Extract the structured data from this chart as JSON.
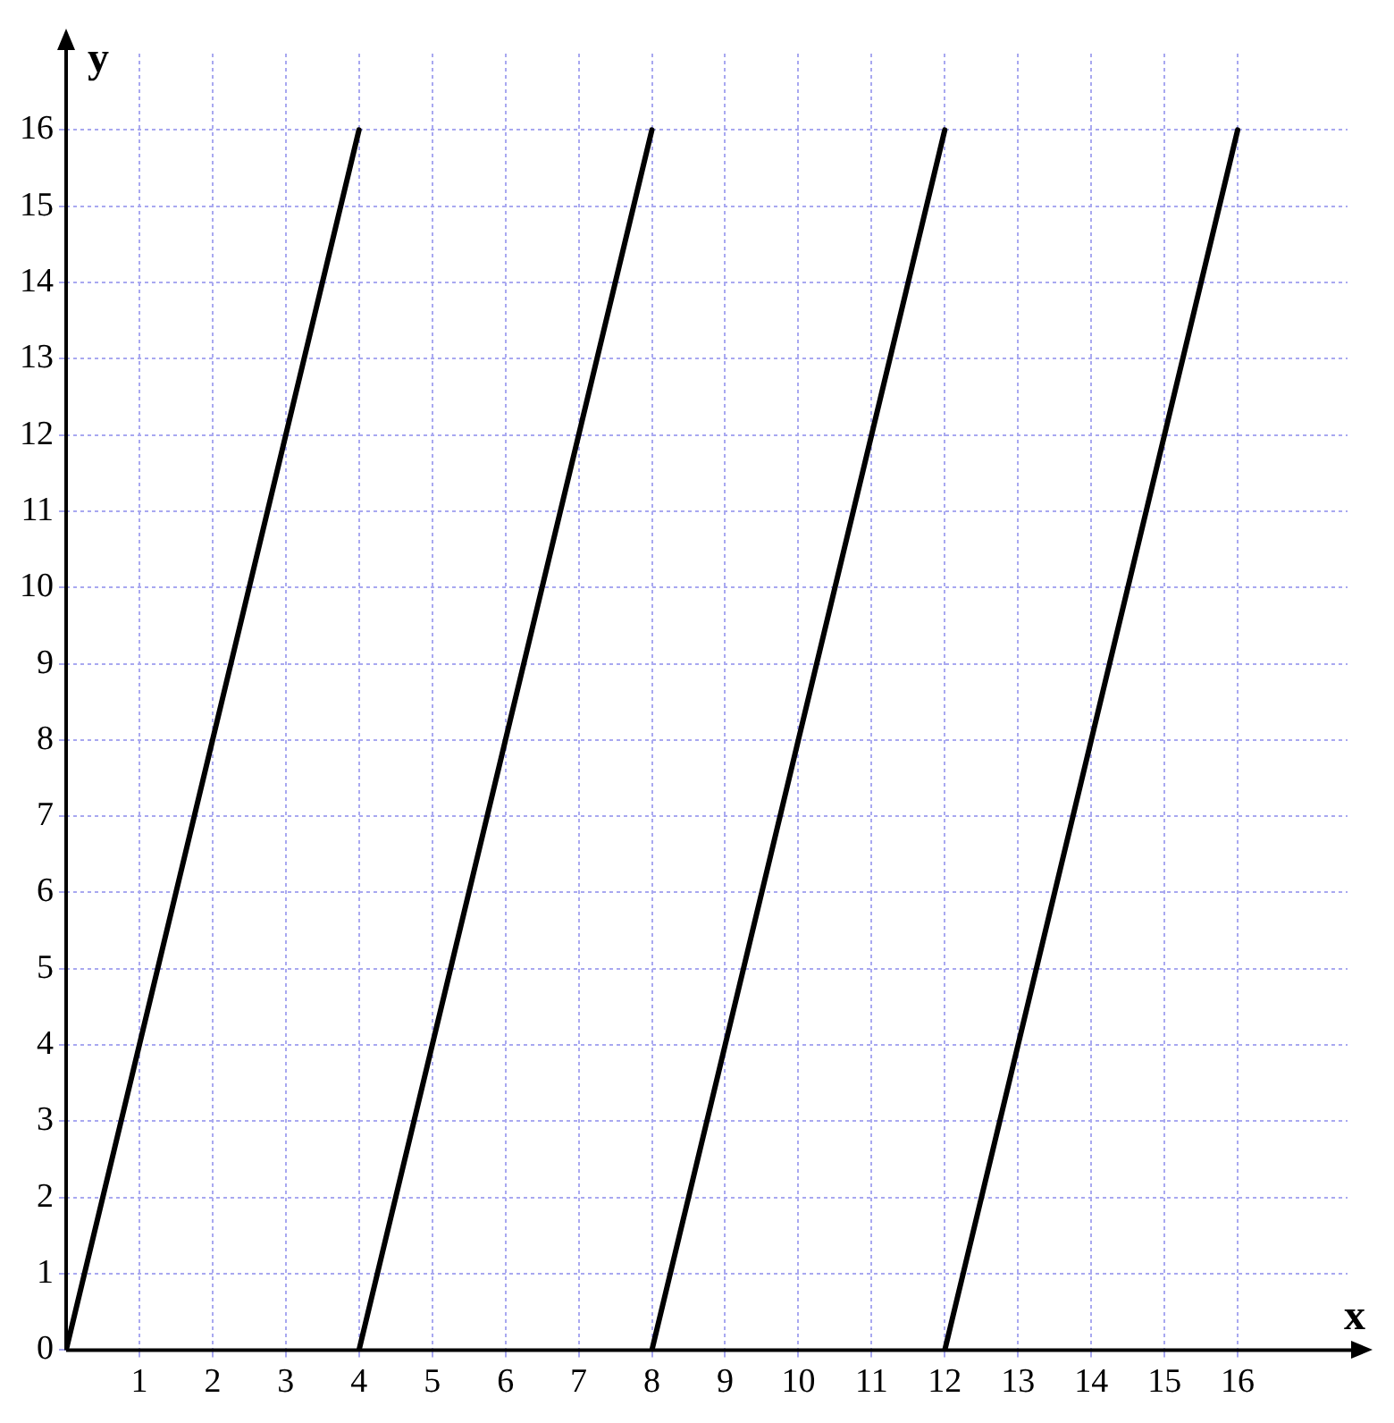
{
  "chart_data": {
    "type": "line",
    "xlabel": "x",
    "ylabel": "y",
    "xlim": [
      0,
      17.5
    ],
    "ylim": [
      0,
      17
    ],
    "xticks": [
      1,
      2,
      3,
      4,
      5,
      6,
      7,
      8,
      9,
      10,
      11,
      12,
      13,
      14,
      15,
      16
    ],
    "yticks": [
      0,
      1,
      2,
      3,
      4,
      5,
      6,
      7,
      8,
      9,
      10,
      11,
      12,
      13,
      14,
      15,
      16
    ],
    "grid": true,
    "marker": "none",
    "line_style": "solid",
    "series": [
      {
        "color": "#000000",
        "x": [
          0,
          4
        ],
        "values": [
          0,
          16
        ]
      },
      {
        "color": "#000000",
        "x": [
          4,
          8
        ],
        "values": [
          0,
          16
        ]
      },
      {
        "color": "#000000",
        "x": [
          8,
          12
        ],
        "values": [
          0,
          16
        ]
      },
      {
        "color": "#000000",
        "x": [
          12,
          16
        ],
        "values": [
          0,
          16
        ]
      }
    ]
  }
}
